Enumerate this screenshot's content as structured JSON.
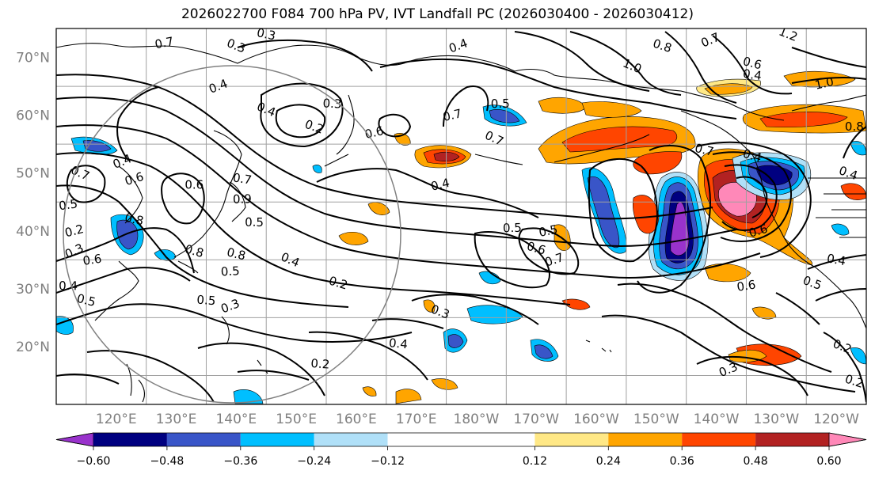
{
  "title": "2026022700 F084 700 hPa PV, IVT Landfall PC (2026030400 - 2026030412)",
  "map": {
    "projection": "PlateCarree, 110°E–115°W (dateline-centered)",
    "lon_min": 110,
    "lon_max": 245,
    "lat_min": 10,
    "lat_max": 75,
    "lat_ticks": [
      70,
      60,
      50,
      40,
      30,
      20
    ],
    "lat_labels": [
      "70°N",
      "60°N",
      "50°N",
      "40°N",
      "30°N",
      "20°N"
    ],
    "lon_ticks": [
      120,
      130,
      140,
      150,
      160,
      170,
      180,
      190,
      200,
      210,
      220,
      230,
      240
    ],
    "lon_labels": [
      "120°E",
      "130°E",
      "140°E",
      "150°E",
      "160°E",
      "170°E",
      "180°W",
      "170°W",
      "160°W",
      "150°W",
      "140°W",
      "130°W",
      "120°W"
    ],
    "grid": true
  },
  "chart_data": {
    "type": "heatmap",
    "variable_filled": "IVT Landfall PC",
    "variable_contoured": "700 hPa PV",
    "levels": [
      -0.6,
      -0.48,
      -0.36,
      -0.24,
      -0.12,
      0.12,
      0.24,
      0.36,
      0.48,
      0.6
    ],
    "level_labels": [
      "−0.60",
      "−0.48",
      "−0.36",
      "−0.24",
      "−0.12",
      "0.12",
      "0.24",
      "0.36",
      "0.48",
      "0.60"
    ],
    "colors": [
      "#9932cc",
      "#000080",
      "#3955c8",
      "#00bfff",
      "#b0e0f8",
      "#ffffff",
      "#ffe886",
      "#ffa500",
      "#ff4500",
      "#b22222",
      "#ff88b8"
    ],
    "extend": "both",
    "contour_labels": [
      {
        "lon": 128,
        "lat": 72.5,
        "v": "0.7"
      },
      {
        "lon": 140,
        "lat": 72,
        "v": "0.3"
      },
      {
        "lon": 145,
        "lat": 74,
        "v": "0.3"
      },
      {
        "lon": 137,
        "lat": 65,
        "v": "0.4"
      },
      {
        "lon": 145,
        "lat": 61,
        "v": "0.4"
      },
      {
        "lon": 156,
        "lat": 62,
        "v": "0.3"
      },
      {
        "lon": 153,
        "lat": 58,
        "v": "0.2"
      },
      {
        "lon": 163,
        "lat": 57,
        "v": "0.6"
      },
      {
        "lon": 176,
        "lat": 60,
        "v": "0.7"
      },
      {
        "lon": 184,
        "lat": 62,
        "v": "0.5"
      },
      {
        "lon": 183,
        "lat": 56,
        "v": "0.7"
      },
      {
        "lon": 177,
        "lat": 72,
        "v": "0.4"
      },
      {
        "lon": 206,
        "lat": 68.5,
        "v": "1.0"
      },
      {
        "lon": 211,
        "lat": 72,
        "v": "0.8"
      },
      {
        "lon": 219,
        "lat": 73,
        "v": "0.7"
      },
      {
        "lon": 226,
        "lat": 69,
        "v": "0.6"
      },
      {
        "lon": 226,
        "lat": 67,
        "v": "0.4"
      },
      {
        "lon": 232,
        "lat": 74,
        "v": "1.2"
      },
      {
        "lon": 238,
        "lat": 65.5,
        "v": "1.0"
      },
      {
        "lon": 243,
        "lat": 58,
        "v": "0.8"
      },
      {
        "lon": 242,
        "lat": 50,
        "v": "0.4"
      },
      {
        "lon": 218,
        "lat": 54,
        "v": "0.7"
      },
      {
        "lon": 226,
        "lat": 53,
        "v": "0.4"
      },
      {
        "lon": 174,
        "lat": 48,
        "v": "0.4"
      },
      {
        "lon": 186,
        "lat": 40.5,
        "v": "0.5"
      },
      {
        "lon": 192,
        "lat": 40,
        "v": "0.5"
      },
      {
        "lon": 190,
        "lat": 37,
        "v": "0.6"
      },
      {
        "lon": 193,
        "lat": 35,
        "v": "0.7"
      },
      {
        "lon": 227,
        "lat": 40,
        "v": "0.6"
      },
      {
        "lon": 225,
        "lat": 30.5,
        "v": "0.6"
      },
      {
        "lon": 236,
        "lat": 31,
        "v": "0.5"
      },
      {
        "lon": 240,
        "lat": 35,
        "v": "0.4"
      },
      {
        "lon": 157,
        "lat": 31,
        "v": "0.2"
      },
      {
        "lon": 149,
        "lat": 35,
        "v": "0.4"
      },
      {
        "lon": 140,
        "lat": 36,
        "v": "0.8"
      },
      {
        "lon": 139,
        "lat": 33,
        "v": "0.5"
      },
      {
        "lon": 133,
        "lat": 36.5,
        "v": "0.8"
      },
      {
        "lon": 113,
        "lat": 40,
        "v": "0.2"
      },
      {
        "lon": 113,
        "lat": 36.5,
        "v": "0.3"
      },
      {
        "lon": 116,
        "lat": 35,
        "v": "0.6"
      },
      {
        "lon": 112,
        "lat": 30.5,
        "v": "0.4"
      },
      {
        "lon": 115,
        "lat": 28,
        "v": "0.5"
      },
      {
        "lon": 123,
        "lat": 42,
        "v": "0.8"
      },
      {
        "lon": 123,
        "lat": 49,
        "v": "0.6"
      },
      {
        "lon": 121,
        "lat": 52,
        "v": "0.4"
      },
      {
        "lon": 114,
        "lat": 50,
        "v": "0.7"
      },
      {
        "lon": 112,
        "lat": 44.5,
        "v": "0.5"
      },
      {
        "lon": 133,
        "lat": 48,
        "v": "0.6"
      },
      {
        "lon": 141,
        "lat": 45.5,
        "v": "0.9"
      },
      {
        "lon": 141,
        "lat": 49,
        "v": "0.7"
      },
      {
        "lon": 143,
        "lat": 41.5,
        "v": "0.5"
      },
      {
        "lon": 135,
        "lat": 28,
        "v": "0.5"
      },
      {
        "lon": 139,
        "lat": 27,
        "v": "0.3"
      },
      {
        "lon": 167,
        "lat": 20.5,
        "v": "0.4"
      },
      {
        "lon": 174,
        "lat": 26,
        "v": "0.3"
      },
      {
        "lon": 154,
        "lat": 17,
        "v": "0.2"
      },
      {
        "lon": 222,
        "lat": 16,
        "v": "0.3"
      },
      {
        "lon": 241,
        "lat": 20,
        "v": "0.2"
      },
      {
        "lon": 243,
        "lat": 14,
        "v": "0.2"
      }
    ]
  }
}
